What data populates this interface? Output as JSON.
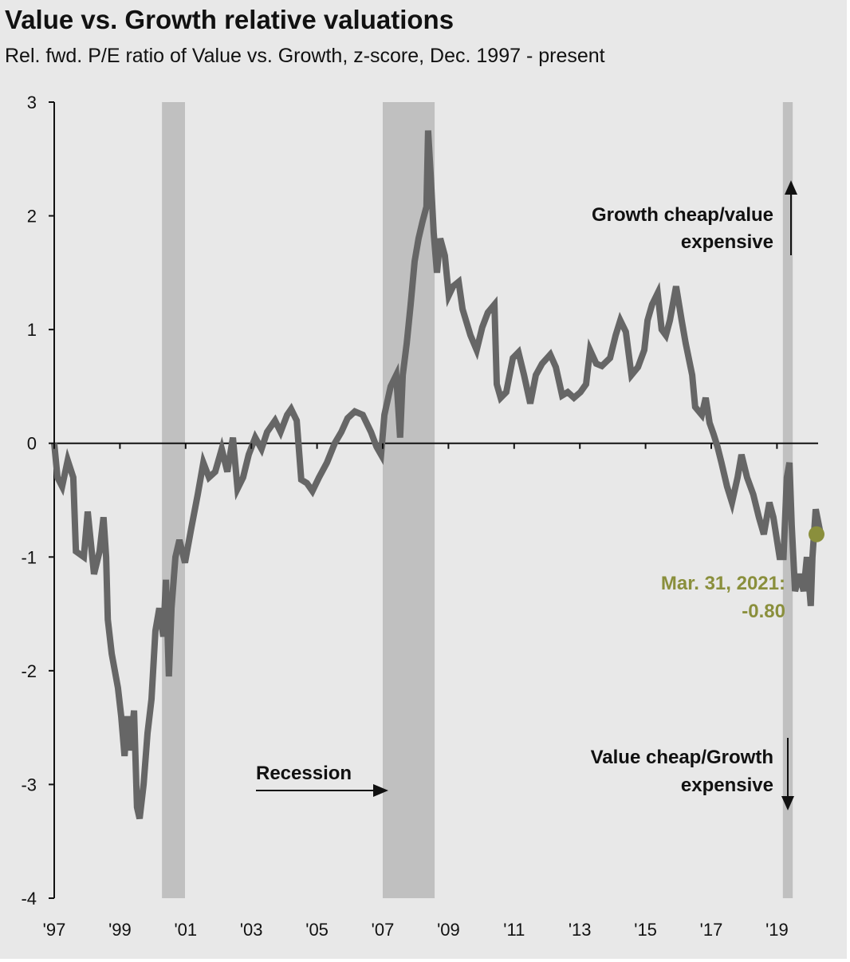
{
  "chart_data": {
    "type": "line",
    "title": "Value vs. Growth relative valuations",
    "subtitle": "Rel. fwd. P/E ratio of Value vs. Growth, z-score, Dec. 1997 - present",
    "ylim": [
      -4,
      3
    ],
    "yticks": [
      3,
      2,
      1,
      0,
      -1,
      -2,
      -3,
      -4
    ],
    "xlim": [
      1997.92,
      2021.3
    ],
    "xticks": [
      {
        "x": 1997.92,
        "label": "'97"
      },
      {
        "x": 1999.92,
        "label": "'99"
      },
      {
        "x": 2001.92,
        "label": "'01"
      },
      {
        "x": 2003.92,
        "label": "'03"
      },
      {
        "x": 2005.92,
        "label": "'05"
      },
      {
        "x": 2007.92,
        "label": "'07"
      },
      {
        "x": 2009.92,
        "label": "'09"
      },
      {
        "x": 2011.92,
        "label": "'11"
      },
      {
        "x": 2013.92,
        "label": "'13"
      },
      {
        "x": 2015.92,
        "label": "'15"
      },
      {
        "x": 2017.92,
        "label": "'17"
      },
      {
        "x": 2019.92,
        "label": "'19"
      }
    ],
    "grid": false,
    "zero_line": true,
    "colors": {
      "line": "#666666",
      "recession": "#c0c0c0",
      "highlight": "#8a8f3c",
      "background": "#e8e8e8"
    },
    "recessions": [
      [
        2001.2,
        2001.9
      ],
      [
        2007.92,
        2009.5
      ],
      [
        2020.1,
        2020.4
      ]
    ],
    "series": [
      {
        "x": [
          1997.92,
          1998.02,
          1998.16,
          1998.33,
          1998.5,
          1998.58,
          1998.82,
          1998.94,
          1999.13,
          1999.3,
          1999.42,
          1999.5,
          1999.55,
          1999.67,
          1999.86,
          1999.96,
          2000.06,
          2000.15,
          2000.23,
          2000.35,
          2000.44,
          2000.52,
          2000.64,
          2000.76,
          2000.88,
          2001.0,
          2001.12,
          2001.24,
          2001.32,
          2001.41,
          2001.49,
          2001.61,
          2001.73,
          2001.9,
          2002.09,
          2002.29,
          2002.46,
          2002.63,
          2002.82,
          2003.02,
          2003.19,
          2003.36,
          2003.5,
          2003.67,
          2003.84,
          2004.04,
          2004.23,
          2004.4,
          2004.64,
          2004.81,
          2005.01,
          2005.13,
          2005.3,
          2005.44,
          2005.61,
          2005.78,
          2005.98,
          2006.22,
          2006.46,
          2006.66,
          2006.85,
          2007.07,
          2007.31,
          2007.56,
          2007.73,
          2007.87,
          2007.97,
          2008.16,
          2008.33,
          2008.45,
          2008.53,
          2008.65,
          2008.77,
          2008.89,
          2009.01,
          2009.13,
          2009.25,
          2009.3,
          2009.38,
          2009.47,
          2009.57,
          2009.67,
          2009.81,
          2009.93,
          2010.06,
          2010.23,
          2010.35,
          2010.59,
          2010.78,
          2010.95,
          2011.12,
          2011.32,
          2011.39,
          2011.51,
          2011.68,
          2011.88,
          2012.05,
          2012.22,
          2012.41,
          2012.58,
          2012.77,
          2013.02,
          2013.19,
          2013.38,
          2013.55,
          2013.74,
          2013.94,
          2014.11,
          2014.23,
          2014.42,
          2014.59,
          2014.84,
          2015.01,
          2015.15,
          2015.32,
          2015.49,
          2015.69,
          2015.88,
          2015.98,
          2016.12,
          2016.29,
          2016.41,
          2016.54,
          2016.66,
          2016.85,
          2017.02,
          2017.14,
          2017.34,
          2017.43,
          2017.63,
          2017.75,
          2017.87,
          2017.99,
          2018.11,
          2018.23,
          2018.4,
          2018.55,
          2018.72,
          2018.84,
          2019.01,
          2019.2,
          2019.37,
          2019.52,
          2019.69,
          2019.81,
          2020.0,
          2020.12,
          2020.22,
          2020.3,
          2020.37,
          2020.47,
          2020.61,
          2020.73,
          2020.83,
          2020.95,
          2021.0,
          2021.1,
          2021.25
        ],
        "y": [
          0,
          -0.3,
          -0.38,
          -0.15,
          -0.3,
          -0.95,
          -1.0,
          -0.6,
          -1.15,
          -0.95,
          -0.65,
          -1.0,
          -1.55,
          -1.85,
          -2.15,
          -2.4,
          -2.75,
          -2.4,
          -2.7,
          -2.35,
          -3.2,
          -3.3,
          -3.0,
          -2.55,
          -2.25,
          -1.65,
          -1.45,
          -1.7,
          -1.2,
          -2.05,
          -1.45,
          -1.0,
          -0.85,
          -1.05,
          -0.75,
          -0.45,
          -0.17,
          -0.3,
          -0.25,
          -0.05,
          -0.25,
          0.05,
          -0.4,
          -0.3,
          -0.1,
          0.05,
          -0.05,
          0.1,
          0.2,
          0.1,
          0.25,
          0.3,
          0.2,
          -0.32,
          -0.35,
          -0.42,
          -0.3,
          -0.17,
          0.0,
          0.1,
          0.22,
          0.28,
          0.25,
          0.1,
          -0.03,
          -0.1,
          0.25,
          0.5,
          0.6,
          0.05,
          0.6,
          0.88,
          1.22,
          1.6,
          1.8,
          1.95,
          2.08,
          2.75,
          2.35,
          1.85,
          1.5,
          1.8,
          1.65,
          1.3,
          1.38,
          1.42,
          1.18,
          0.95,
          0.82,
          1.02,
          1.15,
          1.22,
          0.52,
          0.4,
          0.45,
          0.75,
          0.8,
          0.6,
          0.35,
          0.6,
          0.7,
          0.78,
          0.67,
          0.42,
          0.45,
          0.4,
          0.45,
          0.52,
          0.82,
          0.7,
          0.68,
          0.75,
          0.95,
          1.08,
          0.98,
          0.6,
          0.67,
          0.82,
          1.08,
          1.22,
          1.32,
          1.0,
          0.95,
          1.08,
          1.38,
          1.08,
          0.88,
          0.6,
          0.32,
          0.25,
          0.4,
          0.18,
          0.08,
          -0.03,
          -0.17,
          -0.38,
          -0.52,
          -0.3,
          -0.1,
          -0.3,
          -0.45,
          -0.65,
          -0.8,
          -0.52,
          -0.65,
          -1.0,
          -1.0,
          -0.3,
          -0.17,
          -0.72,
          -1.3,
          -1.15,
          -1.3,
          -1.0,
          -1.43,
          -1.0,
          -0.58,
          -0.8
        ]
      }
    ],
    "annotations": {
      "top_line1": "Growth cheap/value",
      "top_line2": "expensive",
      "bottom_line1": "Value cheap/Growth",
      "bottom_line2": "expensive",
      "recession_label": "Recession",
      "last_point_line1": "Mar. 31, 2021:",
      "last_point_line2": "-0.80",
      "last_point": {
        "x": 2021.25,
        "y": -0.8
      }
    }
  }
}
